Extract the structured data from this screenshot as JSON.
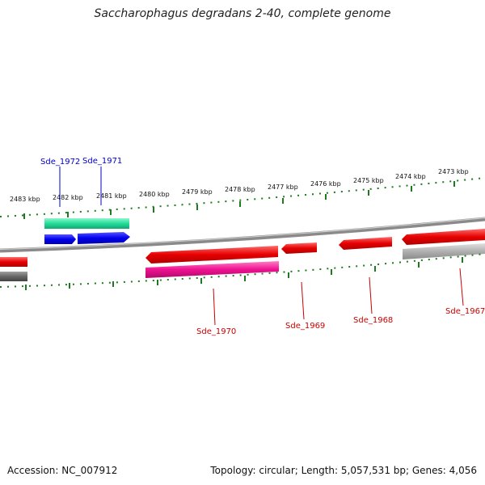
{
  "title": "Saccharophagus degradans 2-40, complete genome",
  "footer": {
    "accession": "Accession: NC_007912",
    "summary": "Topology: circular; Length: 5,057,531 bp; Genes: 4,056"
  },
  "colors": {
    "backbone": "#7a7a7a",
    "tick": "#1e7a1e",
    "forward_gene": "#0000ee",
    "forward_cds": "#22dd99",
    "reverse_gene": "#ee0000",
    "reverse_cds_pink": "#ee1190",
    "reverse_cds_gray": "#a8a8a8",
    "label_blue": "#0000cc",
    "label_red": "#cc0000"
  },
  "scale": {
    "unit": "kbp",
    "labels": [
      "2483 kbp",
      "2482 kbp",
      "2481 kbp",
      "2480 kbp",
      "2479 kbp",
      "2478 kbp",
      "2477 kbp",
      "2476 kbp",
      "2475 kbp",
      "2474 kbp",
      "2473 kbp"
    ]
  },
  "genes": [
    {
      "name": "Sde_1972",
      "strand": "+"
    },
    {
      "name": "Sde_1971",
      "strand": "+"
    },
    {
      "name": "Sde_1970",
      "strand": "-"
    },
    {
      "name": "Sde_1969",
      "strand": "-"
    },
    {
      "name": "Sde_1968",
      "strand": "-"
    },
    {
      "name": "Sde_1967",
      "strand": "-"
    }
  ]
}
